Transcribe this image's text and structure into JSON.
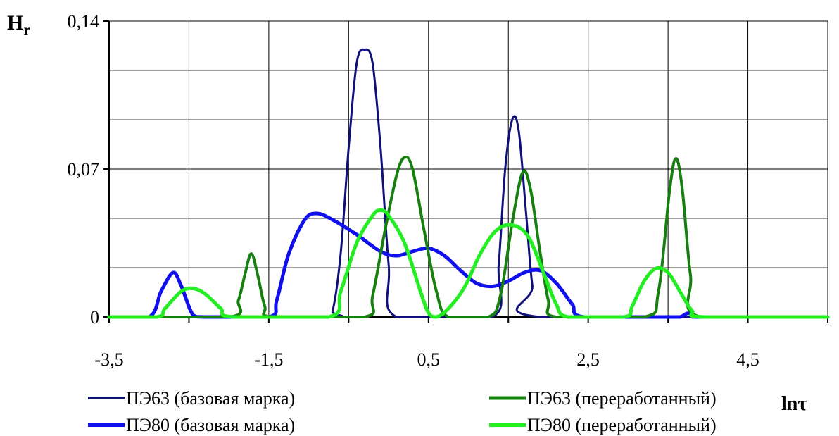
{
  "chart_data": {
    "type": "line",
    "ylabel_main": "H",
    "ylabel_sub": "r",
    "xlabel": "lnτ",
    "xlim": [
      -3.5,
      5.5
    ],
    "ylim": [
      0,
      0.14
    ],
    "x_ticks": [
      -3.5,
      -1.5,
      0.5,
      2.5,
      4.5
    ],
    "x_tick_labels": [
      "-3,5",
      "-1,5",
      "0,5",
      "2,5",
      "4,5"
    ],
    "y_ticks": [
      0,
      0.07,
      0.14
    ],
    "y_tick_labels": [
      "0",
      "0,07",
      "0,14"
    ],
    "x_grid": [
      -3.5,
      -2.5,
      -1.5,
      -0.5,
      0.5,
      1.5,
      2.5,
      3.5,
      4.5,
      5.5
    ],
    "y_grid": [
      0,
      0.0233,
      0.0467,
      0.07,
      0.0933,
      0.1167,
      0.14
    ],
    "grid": true,
    "legend_position": "bottom",
    "series": [
      {
        "name": "ПЭ63 (базовая марка)",
        "color": "#10107a",
        "width": 3,
        "points": [
          [
            -3.5,
            0
          ],
          [
            -0.8,
            0
          ],
          [
            -0.7,
            0.003
          ],
          [
            -0.6,
            0.03
          ],
          [
            -0.5,
            0.08
          ],
          [
            -0.4,
            0.12
          ],
          [
            -0.3,
            0.1265
          ],
          [
            -0.2,
            0.12
          ],
          [
            -0.1,
            0.08
          ],
          [
            0.0,
            0.025
          ],
          [
            0.1,
            0
          ],
          [
            1.3,
            0
          ],
          [
            1.38,
            0.025
          ],
          [
            1.46,
            0.07
          ],
          [
            1.55,
            0.0935
          ],
          [
            1.63,
            0.088
          ],
          [
            1.72,
            0.05
          ],
          [
            1.8,
            0.015
          ],
          [
            1.9,
            0
          ],
          [
            5.5,
            0
          ]
        ]
      },
      {
        "name": "ПЭ80 (базовая марка)",
        "color": "#1010ee",
        "width": 5,
        "points": [
          [
            -3.5,
            0
          ],
          [
            -3.0,
            0
          ],
          [
            -2.85,
            0.012
          ],
          [
            -2.7,
            0.021
          ],
          [
            -2.6,
            0.015
          ],
          [
            -2.45,
            0.001
          ],
          [
            -2.3,
            0
          ],
          [
            -1.5,
            0
          ],
          [
            -1.4,
            0.008
          ],
          [
            -1.25,
            0.03
          ],
          [
            -1.05,
            0.046
          ],
          [
            -0.9,
            0.049
          ],
          [
            -0.7,
            0.046
          ],
          [
            -0.4,
            0.039
          ],
          [
            -0.1,
            0.031
          ],
          [
            0.1,
            0.029
          ],
          [
            0.3,
            0.031
          ],
          [
            0.5,
            0.0325
          ],
          [
            0.7,
            0.029
          ],
          [
            0.9,
            0.022
          ],
          [
            1.1,
            0.016
          ],
          [
            1.3,
            0.0145
          ],
          [
            1.5,
            0.017
          ],
          [
            1.7,
            0.021
          ],
          [
            1.9,
            0.022
          ],
          [
            2.1,
            0.016
          ],
          [
            2.3,
            0.006
          ],
          [
            2.45,
            0
          ],
          [
            3.5,
            0
          ],
          [
            3.65,
            0
          ],
          [
            3.75,
            0.0018
          ],
          [
            3.85,
            0.0003
          ],
          [
            3.95,
            0
          ],
          [
            5.5,
            0
          ]
        ]
      },
      {
        "name": "ПЭ63 (переработанный)",
        "color": "#15800f",
        "width": 4,
        "points": [
          [
            -3.5,
            0
          ],
          [
            -2.0,
            0
          ],
          [
            -1.88,
            0.008
          ],
          [
            -1.8,
            0.02
          ],
          [
            -1.72,
            0.03
          ],
          [
            -1.64,
            0.02
          ],
          [
            -1.55,
            0.005
          ],
          [
            -1.45,
            0
          ],
          [
            -0.3,
            0
          ],
          [
            -0.2,
            0.01
          ],
          [
            -0.05,
            0.04
          ],
          [
            0.1,
            0.067
          ],
          [
            0.2,
            0.0755
          ],
          [
            0.3,
            0.07
          ],
          [
            0.45,
            0.04
          ],
          [
            0.6,
            0.012
          ],
          [
            0.75,
            0
          ],
          [
            1.25,
            0
          ],
          [
            1.4,
            0.01
          ],
          [
            1.55,
            0.045
          ],
          [
            1.68,
            0.0685
          ],
          [
            1.78,
            0.06
          ],
          [
            1.9,
            0.03
          ],
          [
            2.0,
            0.008
          ],
          [
            2.1,
            0
          ],
          [
            3.2,
            0
          ],
          [
            3.38,
            0.012
          ],
          [
            3.52,
            0.06
          ],
          [
            3.6,
            0.075
          ],
          [
            3.68,
            0.06
          ],
          [
            3.78,
            0.02
          ],
          [
            3.9,
            0
          ],
          [
            5.5,
            0
          ]
        ]
      },
      {
        "name": "ПЭ80 (переработанный)",
        "color": "#22ee22",
        "width": 5,
        "points": [
          [
            -3.5,
            0
          ],
          [
            -2.9,
            0
          ],
          [
            -2.8,
            0.004
          ],
          [
            -2.6,
            0.012
          ],
          [
            -2.45,
            0.0135
          ],
          [
            -2.3,
            0.011
          ],
          [
            -2.1,
            0.004
          ],
          [
            -1.95,
            0
          ],
          [
            -0.75,
            0
          ],
          [
            -0.6,
            0.012
          ],
          [
            -0.4,
            0.035
          ],
          [
            -0.2,
            0.048
          ],
          [
            -0.1,
            0.0505
          ],
          [
            0.0,
            0.048
          ],
          [
            0.2,
            0.035
          ],
          [
            0.4,
            0.012
          ],
          [
            0.5,
            0.002
          ],
          [
            0.6,
            0
          ],
          [
            0.75,
            0.004
          ],
          [
            0.95,
            0.014
          ],
          [
            1.15,
            0.03
          ],
          [
            1.35,
            0.041
          ],
          [
            1.55,
            0.0435
          ],
          [
            1.75,
            0.038
          ],
          [
            1.95,
            0.02
          ],
          [
            2.1,
            0.006
          ],
          [
            2.25,
            0
          ],
          [
            2.95,
            0
          ],
          [
            3.05,
            0.005
          ],
          [
            3.2,
            0.017
          ],
          [
            3.35,
            0.023
          ],
          [
            3.5,
            0.021
          ],
          [
            3.65,
            0.012
          ],
          [
            3.8,
            0.003
          ],
          [
            3.95,
            0
          ],
          [
            5.5,
            0
          ]
        ]
      }
    ]
  },
  "legend": {
    "items": [
      {
        "label": "ПЭ63 (базовая марка)",
        "color": "#10107a",
        "width": 3
      },
      {
        "label": "ПЭ63 (переработанный)",
        "color": "#15800f",
        "width": 4
      },
      {
        "label": "ПЭ80 (базовая марка)",
        "color": "#1010ee",
        "width": 5
      },
      {
        "label": "ПЭ80 (переработанный)",
        "color": "#22ee22",
        "width": 5
      }
    ]
  }
}
